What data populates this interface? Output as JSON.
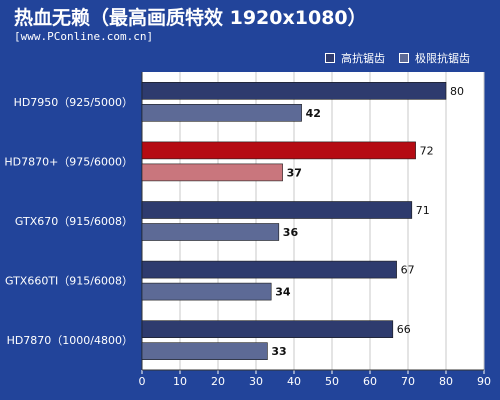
{
  "header": {
    "title": "热血无赖（最高画质特效 1920x1080）",
    "source": "[www.PConline.com.cn]"
  },
  "colors": {
    "background": "#22449a",
    "plot_area": "#ffffff",
    "series1": "#2e3b6e",
    "series2": "#5d6a96",
    "highlight1": "#b50b13",
    "highlight2": "#c9767d"
  },
  "chart_data": {
    "type": "bar",
    "orientation": "horizontal",
    "categories": [
      "HD7950（925/5000）",
      "HD7870+（975/6000）",
      "GTX670（915/6008）",
      "GTX660TI（915/6008）",
      "HD7870（1000/4800）"
    ],
    "highlight_category_index": 1,
    "series": [
      {
        "name": "高抗锯齿",
        "values": [
          80,
          72,
          71,
          67,
          66
        ]
      },
      {
        "name": "极限抗锯齿",
        "values": [
          42,
          37,
          36,
          34,
          33
        ]
      }
    ],
    "xlim": [
      0,
      90
    ],
    "xticks": [
      0,
      10,
      20,
      30,
      40,
      50,
      60,
      70,
      80,
      90
    ],
    "grid": true,
    "legend_position": "top-right"
  }
}
